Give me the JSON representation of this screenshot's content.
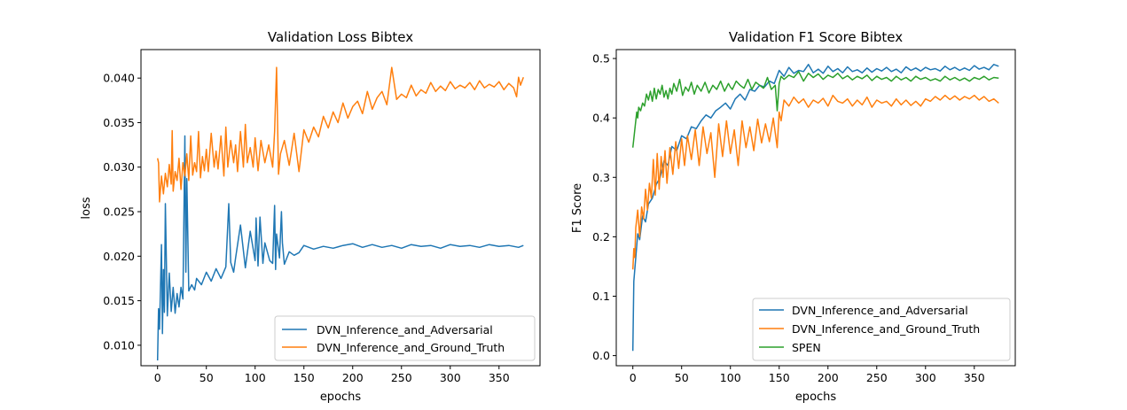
{
  "chart_data": [
    {
      "type": "line",
      "title": "Validation Loss Bibtex",
      "xlabel": "epochs",
      "ylabel": "loss",
      "xlim": [
        -17,
        392
      ],
      "ylim": [
        0.0077,
        0.0432
      ],
      "xticks": [
        0,
        50,
        100,
        150,
        200,
        250,
        300,
        350
      ],
      "yticks": [
        0.01,
        0.015,
        0.02,
        0.025,
        0.03,
        0.035,
        0.04
      ],
      "ytick_labels": [
        "0.010",
        "0.015",
        "0.020",
        "0.025",
        "0.030",
        "0.035",
        "0.040"
      ],
      "legend_position": "lower-right",
      "series": [
        {
          "name": "DVN_Inference_and_Adversarial",
          "color": "#1f77b4",
          "x": [
            0,
            1,
            2,
            3,
            4,
            5,
            6,
            7,
            8,
            10,
            12,
            14,
            16,
            18,
            20,
            22,
            24,
            26,
            28,
            29,
            30,
            32,
            35,
            38,
            40,
            45,
            50,
            55,
            60,
            65,
            70,
            73,
            75,
            78,
            80,
            85,
            90,
            95,
            100,
            101,
            103,
            105,
            108,
            110,
            115,
            118,
            120,
            121,
            122,
            125,
            127,
            128,
            130,
            135,
            140,
            145,
            150,
            160,
            170,
            180,
            190,
            200,
            210,
            220,
            230,
            240,
            250,
            260,
            270,
            280,
            290,
            300,
            310,
            320,
            330,
            340,
            350,
            360,
            370,
            375
          ],
          "values": [
            0.0083,
            0.0141,
            0.0118,
            0.0165,
            0.0213,
            0.0113,
            0.0185,
            0.0137,
            0.0259,
            0.0133,
            0.0181,
            0.0138,
            0.0165,
            0.0136,
            0.0158,
            0.0143,
            0.0165,
            0.0152,
            0.0335,
            0.0182,
            0.0287,
            0.0161,
            0.0168,
            0.0162,
            0.0175,
            0.0168,
            0.0182,
            0.0172,
            0.0186,
            0.0175,
            0.0188,
            0.0259,
            0.0193,
            0.0182,
            0.0198,
            0.0235,
            0.0187,
            0.0228,
            0.0195,
            0.0243,
            0.0189,
            0.0244,
            0.0192,
            0.0215,
            0.0195,
            0.0192,
            0.0257,
            0.0185,
            0.0225,
            0.0198,
            0.025,
            0.0215,
            0.0191,
            0.0205,
            0.0201,
            0.0204,
            0.0212,
            0.0208,
            0.0211,
            0.0209,
            0.0212,
            0.0214,
            0.021,
            0.0213,
            0.021,
            0.0212,
            0.0209,
            0.0213,
            0.0211,
            0.0212,
            0.0209,
            0.0213,
            0.0211,
            0.0212,
            0.021,
            0.0213,
            0.0211,
            0.0212,
            0.021,
            0.0212
          ]
        },
        {
          "name": "DVN_Inference_and_Ground_Truth",
          "color": "#ff7f0e",
          "x": [
            0,
            1,
            2,
            4,
            6,
            8,
            10,
            12,
            14,
            15,
            16,
            18,
            20,
            22,
            24,
            26,
            28,
            30,
            32,
            34,
            36,
            38,
            40,
            42,
            44,
            46,
            48,
            50,
            52,
            55,
            58,
            60,
            62,
            65,
            68,
            70,
            72,
            75,
            78,
            80,
            82,
            85,
            88,
            90,
            92,
            95,
            98,
            100,
            103,
            106,
            110,
            114,
            118,
            120,
            122,
            124,
            126,
            130,
            135,
            140,
            145,
            150,
            155,
            160,
            165,
            170,
            175,
            180,
            185,
            190,
            195,
            200,
            205,
            210,
            215,
            220,
            225,
            230,
            235,
            240,
            245,
            250,
            255,
            260,
            265,
            270,
            275,
            280,
            285,
            290,
            295,
            300,
            305,
            310,
            315,
            320,
            325,
            330,
            335,
            340,
            345,
            350,
            355,
            360,
            365,
            368,
            370,
            372,
            375
          ],
          "values": [
            0.031,
            0.0305,
            0.0261,
            0.029,
            0.027,
            0.0293,
            0.0278,
            0.0303,
            0.0281,
            0.0341,
            0.0273,
            0.0295,
            0.0285,
            0.031,
            0.0275,
            0.0305,
            0.029,
            0.0315,
            0.0285,
            0.0335,
            0.0291,
            0.0305,
            0.0295,
            0.034,
            0.0288,
            0.0312,
            0.0296,
            0.032,
            0.0295,
            0.0338,
            0.03,
            0.0318,
            0.0298,
            0.0335,
            0.029,
            0.0345,
            0.03,
            0.033,
            0.0305,
            0.0325,
            0.0295,
            0.034,
            0.03,
            0.0348,
            0.0305,
            0.0322,
            0.03,
            0.0333,
            0.0296,
            0.033,
            0.0305,
            0.0325,
            0.03,
            0.034,
            0.0412,
            0.0292,
            0.0315,
            0.033,
            0.0302,
            0.0338,
            0.0295,
            0.0342,
            0.0328,
            0.0345,
            0.0334,
            0.0357,
            0.0344,
            0.0362,
            0.035,
            0.0372,
            0.0355,
            0.0368,
            0.0374,
            0.036,
            0.0385,
            0.0365,
            0.0378,
            0.0385,
            0.037,
            0.0412,
            0.0376,
            0.0382,
            0.0378,
            0.0392,
            0.038,
            0.0387,
            0.0383,
            0.0395,
            0.0385,
            0.0391,
            0.0386,
            0.0396,
            0.0388,
            0.0392,
            0.0389,
            0.0395,
            0.0387,
            0.0397,
            0.0389,
            0.0393,
            0.039,
            0.0396,
            0.0387,
            0.0394,
            0.0389,
            0.0379,
            0.0401,
            0.0392,
            0.0401
          ]
        }
      ]
    },
    {
      "type": "line",
      "title": "Validation F1 Score Bibtex",
      "xlabel": "epochs",
      "ylabel": "F1 Score",
      "xlim": [
        -17,
        392
      ],
      "ylim": [
        -0.017,
        0.515
      ],
      "xticks": [
        0,
        50,
        100,
        150,
        200,
        250,
        300,
        350
      ],
      "yticks": [
        0.0,
        0.1,
        0.2,
        0.3,
        0.4,
        0.5
      ],
      "ytick_labels": [
        "0.0",
        "0.1",
        "0.2",
        "0.3",
        "0.4",
        "0.5"
      ],
      "legend_position": "lower-right",
      "series": [
        {
          "name": "DVN_Inference_and_Adversarial",
          "color": "#1f77b4",
          "x": [
            0,
            1,
            2,
            3,
            5,
            7,
            10,
            13,
            16,
            20,
            24,
            28,
            32,
            36,
            40,
            45,
            50,
            55,
            60,
            65,
            70,
            75,
            80,
            85,
            90,
            95,
            100,
            105,
            110,
            115,
            120,
            125,
            130,
            135,
            140,
            145,
            150,
            155,
            160,
            165,
            170,
            175,
            180,
            185,
            190,
            195,
            200,
            205,
            210,
            215,
            220,
            225,
            230,
            235,
            240,
            245,
            250,
            255,
            260,
            265,
            270,
            275,
            280,
            285,
            290,
            295,
            300,
            305,
            310,
            315,
            320,
            325,
            330,
            335,
            340,
            345,
            350,
            355,
            360,
            365,
            370,
            375
          ],
          "values": [
            0.008,
            0.125,
            0.145,
            0.165,
            0.205,
            0.195,
            0.235,
            0.225,
            0.255,
            0.265,
            0.288,
            0.3,
            0.328,
            0.32,
            0.352,
            0.345,
            0.37,
            0.365,
            0.385,
            0.382,
            0.395,
            0.405,
            0.4,
            0.412,
            0.418,
            0.425,
            0.415,
            0.432,
            0.44,
            0.43,
            0.448,
            0.445,
            0.455,
            0.452,
            0.462,
            0.458,
            0.48,
            0.47,
            0.485,
            0.475,
            0.48,
            0.478,
            0.49,
            0.476,
            0.482,
            0.475,
            0.487,
            0.478,
            0.483,
            0.476,
            0.486,
            0.478,
            0.481,
            0.476,
            0.484,
            0.477,
            0.483,
            0.479,
            0.485,
            0.478,
            0.482,
            0.476,
            0.486,
            0.48,
            0.484,
            0.479,
            0.485,
            0.481,
            0.483,
            0.479,
            0.487,
            0.481,
            0.485,
            0.48,
            0.484,
            0.48,
            0.488,
            0.482,
            0.485,
            0.481,
            0.49,
            0.487
          ]
        },
        {
          "name": "DVN_Inference_and_Ground_Truth",
          "color": "#ff7f0e",
          "x": [
            0,
            1,
            2,
            3,
            5,
            7,
            9,
            11,
            13,
            15,
            17,
            19,
            21,
            23,
            25,
            27,
            29,
            31,
            33,
            35,
            38,
            41,
            44,
            47,
            50,
            53,
            56,
            60,
            64,
            68,
            72,
            76,
            80,
            84,
            88,
            92,
            96,
            100,
            104,
            108,
            112,
            116,
            120,
            124,
            128,
            132,
            136,
            140,
            144,
            148,
            150,
            152,
            155,
            160,
            165,
            170,
            175,
            180,
            185,
            190,
            195,
            200,
            205,
            210,
            215,
            220,
            225,
            230,
            235,
            240,
            245,
            250,
            255,
            260,
            265,
            270,
            275,
            280,
            285,
            290,
            295,
            300,
            305,
            310,
            315,
            320,
            325,
            330,
            335,
            340,
            345,
            350,
            355,
            360,
            365,
            370,
            375
          ],
          "values": [
            0.145,
            0.18,
            0.165,
            0.215,
            0.245,
            0.2,
            0.25,
            0.23,
            0.28,
            0.245,
            0.29,
            0.265,
            0.33,
            0.27,
            0.34,
            0.28,
            0.335,
            0.3,
            0.345,
            0.29,
            0.35,
            0.305,
            0.36,
            0.315,
            0.365,
            0.32,
            0.37,
            0.33,
            0.38,
            0.32,
            0.385,
            0.34,
            0.375,
            0.3,
            0.39,
            0.335,
            0.395,
            0.34,
            0.38,
            0.32,
            0.395,
            0.35,
            0.385,
            0.345,
            0.398,
            0.358,
            0.39,
            0.36,
            0.4,
            0.35,
            0.41,
            0.395,
            0.43,
            0.42,
            0.435,
            0.425,
            0.432,
            0.418,
            0.43,
            0.425,
            0.433,
            0.42,
            0.438,
            0.428,
            0.425,
            0.432,
            0.42,
            0.43,
            0.422,
            0.435,
            0.418,
            0.43,
            0.425,
            0.428,
            0.42,
            0.432,
            0.422,
            0.43,
            0.421,
            0.428,
            0.42,
            0.432,
            0.428,
            0.436,
            0.43,
            0.438,
            0.431,
            0.437,
            0.43,
            0.436,
            0.432,
            0.438,
            0.43,
            0.436,
            0.428,
            0.432,
            0.425
          ]
        },
        {
          "name": "SPEN",
          "color": "#2ca02c",
          "x": [
            0,
            1,
            2,
            3,
            4,
            5,
            6,
            8,
            10,
            12,
            14,
            16,
            18,
            20,
            22,
            24,
            26,
            28,
            30,
            32,
            34,
            36,
            38,
            40,
            42,
            45,
            48,
            51,
            54,
            57,
            60,
            63,
            66,
            70,
            74,
            78,
            82,
            86,
            90,
            94,
            98,
            100,
            102,
            106,
            110,
            114,
            118,
            122,
            126,
            130,
            134,
            138,
            142,
            146,
            148,
            150,
            152,
            155,
            160,
            165,
            170,
            175,
            180,
            185,
            190,
            195,
            200,
            205,
            210,
            215,
            220,
            225,
            230,
            235,
            240,
            245,
            250,
            255,
            260,
            265,
            270,
            275,
            280,
            285,
            290,
            295,
            300,
            305,
            310,
            315,
            320,
            325,
            330,
            335,
            340,
            345,
            350,
            355,
            360,
            365,
            370,
            375
          ],
          "values": [
            0.35,
            0.365,
            0.38,
            0.395,
            0.41,
            0.4,
            0.418,
            0.412,
            0.425,
            0.42,
            0.44,
            0.43,
            0.445,
            0.428,
            0.45,
            0.432,
            0.448,
            0.44,
            0.455,
            0.435,
            0.446,
            0.432,
            0.45,
            0.44,
            0.458,
            0.445,
            0.465,
            0.438,
            0.452,
            0.445,
            0.46,
            0.44,
            0.455,
            0.445,
            0.46,
            0.442,
            0.455,
            0.448,
            0.462,
            0.445,
            0.458,
            0.452,
            0.448,
            0.462,
            0.455,
            0.45,
            0.465,
            0.448,
            0.46,
            0.455,
            0.45,
            0.468,
            0.448,
            0.455,
            0.412,
            0.458,
            0.47,
            0.465,
            0.472,
            0.468,
            0.478,
            0.462,
            0.475,
            0.468,
            0.474,
            0.465,
            0.472,
            0.468,
            0.475,
            0.466,
            0.471,
            0.464,
            0.47,
            0.466,
            0.472,
            0.463,
            0.47,
            0.465,
            0.468,
            0.462,
            0.47,
            0.464,
            0.468,
            0.462,
            0.47,
            0.465,
            0.468,
            0.463,
            0.466,
            0.462,
            0.47,
            0.464,
            0.468,
            0.463,
            0.467,
            0.462,
            0.468,
            0.465,
            0.47,
            0.464,
            0.468,
            0.467
          ]
        }
      ]
    }
  ]
}
